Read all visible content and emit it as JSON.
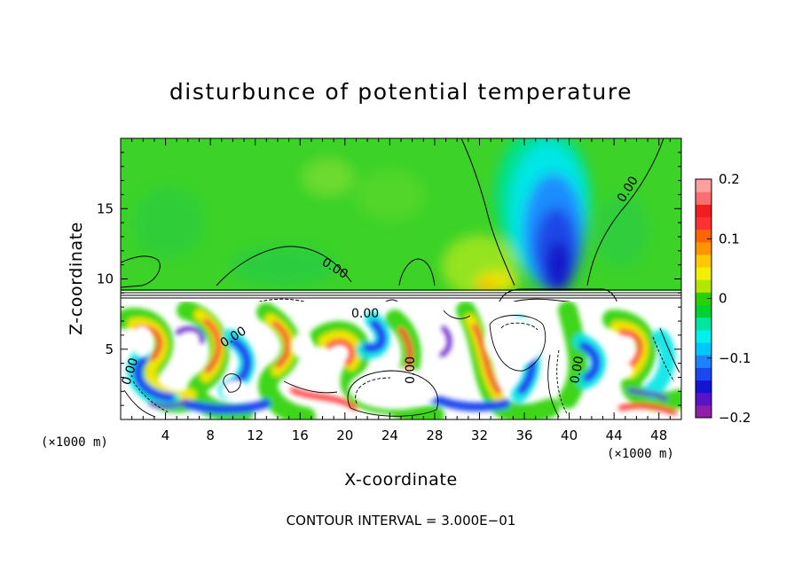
{
  "chart_data": {
    "type": "heatmap",
    "title": "disturbunce of potential temperature",
    "xlabel": "X-coordinate",
    "ylabel": "Z-coordinate",
    "x_unit": "(×1000 m)",
    "z_unit": "(×1000 m)",
    "xlim": [
      0,
      50
    ],
    "ylim": [
      0,
      20
    ],
    "x_ticks": [
      4,
      8,
      12,
      16,
      20,
      24,
      28,
      32,
      36,
      40,
      44,
      48
    ],
    "y_ticks": [
      5,
      10,
      15
    ],
    "colorbar": {
      "min": -0.2,
      "max": 0.2,
      "ticks": [
        -0.2,
        -0.1,
        0,
        0.1,
        0.2
      ],
      "tick_labels": [
        "−0.2",
        "−0.1",
        "0",
        "0.1",
        "0.2"
      ],
      "colors": [
        "#8f1ea8",
        "#5a14c8",
        "#1414d2",
        "#1e46f0",
        "#1e82ff",
        "#00c8ff",
        "#00f0f0",
        "#00e6a0",
        "#00d232",
        "#28d200",
        "#b4e600",
        "#f0f000",
        "#ffc800",
        "#ff9600",
        "#ff6400",
        "#ff3232",
        "#f01e1e",
        "#ff6e6e",
        "#ffa0a0"
      ]
    },
    "contour_labels": [
      {
        "text": "0.00",
        "x": 20.5,
        "z": 10.5
      },
      {
        "text": "0.00",
        "x": 46,
        "z": 16.2
      },
      {
        "text": "0.00",
        "x": 22.5,
        "z": 7.5
      },
      {
        "text": "0.00",
        "x": 10.5,
        "z": 6
      },
      {
        "text": "0.00",
        "x": 1.2,
        "z": 3.5
      },
      {
        "text": "0.00",
        "x": 26.2,
        "z": 3.8
      },
      {
        "text": "0.00",
        "x": 40.6,
        "z": 3.8
      }
    ],
    "footnote": "CONTOUR INTERVAL = 3.000E−01"
  }
}
